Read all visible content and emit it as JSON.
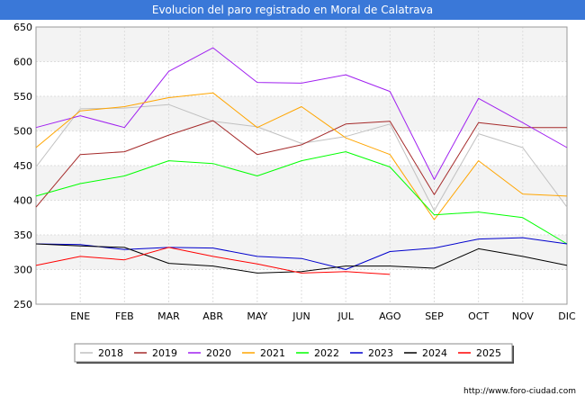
{
  "chart_data": {
    "type": "line",
    "title": "Evolucion del paro registrado en Moral de Calatrava",
    "source": "http://www.foro-ciudad.com",
    "categories": [
      "DIC",
      "ENE",
      "FEB",
      "MAR",
      "ABR",
      "MAY",
      "JUN",
      "JUL",
      "AGO",
      "SEP",
      "OCT",
      "NOV",
      "DIC"
    ],
    "x_tick_labels": [
      "",
      "ENE",
      "FEB",
      "MAR",
      "ABR",
      "MAY",
      "JUN",
      "JUL",
      "AGO",
      "SEP",
      "OCT",
      "NOV",
      "DIC"
    ],
    "ylim": [
      250,
      650
    ],
    "yticks": [
      250,
      300,
      350,
      400,
      450,
      500,
      550,
      600,
      650
    ],
    "grid": true,
    "legend_position": "bottom",
    "series": [
      {
        "name": "2018",
        "color": "#c0c0c0",
        "values": [
          448,
          532,
          533,
          538,
          514,
          506,
          482,
          492,
          510,
          385,
          496,
          476,
          390
        ]
      },
      {
        "name": "2019",
        "color": "#a52a2a",
        "values": [
          390,
          466,
          470,
          494,
          515,
          466,
          480,
          510,
          514,
          408,
          512,
          505,
          505
        ]
      },
      {
        "name": "2020",
        "color": "#a020f0",
        "values": [
          505,
          522,
          505,
          586,
          620,
          570,
          569,
          581,
          557,
          430,
          547,
          512,
          476
        ]
      },
      {
        "name": "2021",
        "color": "#ffa500",
        "values": [
          476,
          529,
          535,
          548,
          555,
          505,
          535,
          490,
          466,
          372,
          457,
          409,
          406
        ]
      },
      {
        "name": "2022",
        "color": "#00ff00",
        "values": [
          406,
          424,
          435,
          457,
          453,
          435,
          457,
          470,
          448,
          379,
          383,
          375,
          337
        ]
      },
      {
        "name": "2023",
        "color": "#0000cd",
        "values": [
          337,
          336,
          329,
          332,
          331,
          319,
          316,
          300,
          326,
          331,
          344,
          346,
          337
        ]
      },
      {
        "name": "2024",
        "color": "#000000",
        "values": [
          337,
          334,
          332,
          309,
          305,
          295,
          297,
          305,
          305,
          302,
          330,
          319,
          306
        ]
      },
      {
        "name": "2025",
        "color": "#ff0000",
        "values": [
          306,
          319,
          314,
          332,
          319,
          308,
          295,
          297,
          293,
          null,
          null,
          null,
          null
        ]
      }
    ]
  }
}
